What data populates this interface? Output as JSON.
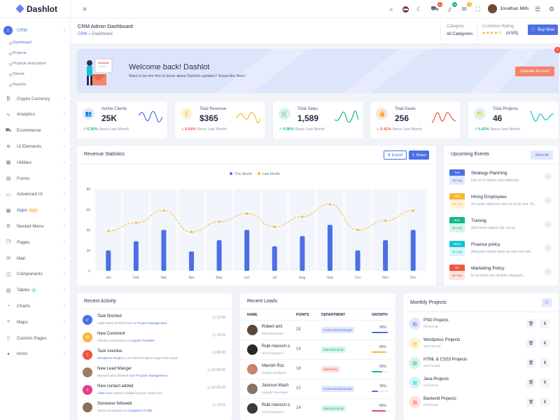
{
  "app": {
    "name": "Dashlot"
  },
  "sidebar": {
    "items": [
      {
        "label": "CRM",
        "icon": "home-icon"
      },
      {
        "label": "Crypto Currency",
        "icon": "bitcoin-icon"
      },
      {
        "label": "Analytics",
        "icon": "pulse-icon"
      },
      {
        "label": "Ecommerce",
        "icon": "cart-icon"
      },
      {
        "label": "Ui Elements",
        "icon": "layers-icon"
      },
      {
        "label": "Utilities",
        "icon": "grid-icon"
      },
      {
        "label": "Forms",
        "icon": "form-icon"
      },
      {
        "label": "Advanced Ui",
        "icon": "monitor-icon"
      },
      {
        "label": "Apps",
        "icon": "apps-icon",
        "badge": "New"
      },
      {
        "label": "Nested Menu",
        "icon": "settings-icon"
      },
      {
        "label": "Pages",
        "icon": "pages-icon"
      },
      {
        "label": "Mail",
        "icon": "mail-icon"
      },
      {
        "label": "Components",
        "icon": "box-icon"
      },
      {
        "label": "Tables",
        "icon": "table-icon",
        "badge": "3"
      },
      {
        "label": "Charts",
        "icon": "chart-icon"
      },
      {
        "label": "Maps",
        "icon": "map-icon"
      },
      {
        "label": "Custom Pages",
        "icon": "file-icon"
      },
      {
        "label": "Icons",
        "icon": "icons-icon"
      }
    ],
    "crm_sub": [
      "Dashboard",
      "Projects",
      "Projects description",
      "Clients",
      "Reports"
    ]
  },
  "topbar": {
    "user": "Jonathan Mills",
    "badges": {
      "cart": "5",
      "notifications": "5",
      "messages": "5"
    }
  },
  "header": {
    "title": "CRM Admin Dashboard",
    "crumb_root": "CRM",
    "crumb_sep": "»",
    "crumb_current": "Dashboard",
    "category_label": "Category",
    "category_value": "All Categories",
    "rating_label": "Customer Rating",
    "rating_value": "(4.5/5)",
    "rating_stars": "★★★★½",
    "buy_now": "Buy Now"
  },
  "welcome": {
    "title": "Welcome back! Dashlot",
    "subtitle": "Want to be the first to know about Dashlot updates? Subscribe Now !",
    "button": "Upgrade Account",
    "close": "×"
  },
  "stats": [
    {
      "label": "Active Clients",
      "value": "25K",
      "change": "0.35%",
      "dir": "up",
      "since": "Since Last Month",
      "color": "#4c6fe6",
      "bg": "#e3e8fc",
      "icon": "users-icon",
      "glyph": "👥"
    },
    {
      "label": "Total Revenue",
      "value": "$365",
      "change": "0.54%",
      "dir": "down",
      "since": "Since Last Month",
      "color": "#f7b731",
      "bg": "#fef3d9",
      "icon": "dollar-icon",
      "glyph": "$"
    },
    {
      "label": "Total Sales",
      "value": "1,589",
      "change": "0.96%",
      "dir": "up",
      "since": "Since Last Month",
      "color": "#12b886",
      "bg": "#d7f5ea",
      "icon": "cart-icon",
      "glyph": "🛒"
    },
    {
      "label": "Total Deals",
      "value": "256",
      "change": "0.42%",
      "dir": "down",
      "since": "Since Last Month",
      "color": "#f0553f",
      "bg": "#fde2de",
      "icon": "thumbs-up-icon",
      "glyph": "👍"
    },
    {
      "label": "Total Projects",
      "value": "46",
      "change": "0.43%",
      "dir": "up",
      "since": "Since Last Month",
      "color": "#13c2d6",
      "bg": "#d6f5f8",
      "icon": "folder-icon",
      "glyph": "📁"
    }
  ],
  "revenue": {
    "title": "Revenue Statistics",
    "export": "Export",
    "share": "Share"
  },
  "chart_data": {
    "type": "bar",
    "categories": [
      "Jan",
      "Feb",
      "Mar",
      "Apr",
      "May",
      "Jun",
      "Jul",
      "Aug",
      "Sep",
      "Oct",
      "Nov",
      "Dec"
    ],
    "series": [
      {
        "name": "This Month",
        "type": "bar",
        "color": "#4c6fe6",
        "values": [
          20,
          29,
          40,
          19,
          30,
          40,
          24,
          34,
          45,
          20,
          30,
          40
        ]
      },
      {
        "name": "Last Month",
        "type": "line",
        "style": "dashed",
        "color": "#f7b731",
        "values": [
          39,
          47,
          59,
          38,
          48,
          56,
          43,
          53,
          65,
          40,
          49,
          59
        ]
      }
    ],
    "ylim": [
      0,
      80
    ],
    "yticks": [
      0,
      20,
      40,
      60,
      80
    ],
    "legend": "top-center",
    "grid": false
  },
  "events": {
    "title": "Upcoming Events",
    "show_all": "Show All",
    "items": [
      {
        "day": "Tue",
        "date": "16 Aug",
        "title": "Strategy Planning",
        "desc": "Duo et et rebum kasd takimata.",
        "color": "#4c6fe6",
        "bg": "#e3e8fc"
      },
      {
        "day": "Thu",
        "date": "18 Aug",
        "title": "Hiring Employees",
        "desc": "Accusam diam est vero no sit sit sea. Te...",
        "color": "#f7b731",
        "bg": "#fef3d9"
      },
      {
        "day": "Mon",
        "date": "22 Aug",
        "title": "Traning",
        "desc": "Stet lorem rebum elitr sea et.",
        "color": "#12b886",
        "bg": "#d7f5ea"
      },
      {
        "day": "Wed",
        "date": "31 Aug",
        "title": "Finance policy",
        "desc": "Aliquyam rebum diam ea vero sea elitr...",
        "color": "#13c2d6",
        "bg": "#d6f5f8"
      },
      {
        "day": "Fri",
        "date": "06 Sep",
        "title": "Marketing Policy",
        "desc": "Et at lorem eos sit dolor aliquyam...",
        "color": "#f0553f",
        "bg": "#fde2de"
      }
    ]
  },
  "activity": {
    "title": "Recent Activity",
    "items": [
      {
        "title": "Task finished",
        "pre": "Adam Berry finished task on",
        "link": "Project Management",
        "time": "12:05",
        "color": "#4c6fe6",
        "icon": "check-icon",
        "glyph": "✓"
      },
      {
        "title": "New Comment",
        "pre": "Victoria commented on",
        "link": "Angular Template",
        "time": "12:01",
        "color": "#f7b731",
        "icon": "comment-icon",
        "glyph": "✉"
      },
      {
        "title": "Task overdue",
        "pre": "",
        "link": "Wordpress Project",
        "post": "is on hold and takes longer than usual.",
        "time": "09:43",
        "color": "#f0553f",
        "icon": "alert-icon",
        "glyph": "!"
      },
      {
        "title": "New Lead Manger",
        "pre": "Manuel Labor finished task",
        "link": "Program management",
        "time": "10-06-22",
        "color": "#a17c60",
        "icon": "avatar-icon",
        "glyph": ""
      },
      {
        "title": "New contact added",
        "pre": "",
        "link": "Adam Ava",
        "post": "contact is added to your contact list.",
        "time": "10-06-22",
        "color": "#e83e8c",
        "icon": "user-plus-icon",
        "glyph": "+"
      },
      {
        "title": "Someone followed",
        "pre": "Genni commented on",
        "link": "Instagram Profile",
        "time": "12:01",
        "color": "#8a6d5a",
        "icon": "avatar-icon",
        "glyph": ""
      }
    ]
  },
  "leads": {
    "title": "Recent Leads",
    "headers": [
      "NAME",
      "POINTS",
      "DEPARTMENT",
      "GROWTH"
    ],
    "rows": [
      {
        "name": "Robert anil",
        "role": "Web Developer",
        "points": "25",
        "dept": "Front-end Developer",
        "growth": "90%",
        "pct": 90,
        "dept_color": "#4c6fe6",
        "dept_bg": "#e3e8fc",
        "bar_color": "#4c6fe6"
      },
      {
        "name": "Rubi mansch o",
        "role": "UI/UX Designer",
        "points": "14",
        "dept": "Manufacturing",
        "growth": "80%",
        "pct": 80,
        "dept_color": "#12b886",
        "dept_bg": "#d7f5ea",
        "bar_color": "#f7b731"
      },
      {
        "name": "Marckh Roz",
        "role": "Graphic Designer",
        "points": "18",
        "dept": "Marketing",
        "growth": "60%",
        "pct": 60,
        "dept_color": "#f0553f",
        "dept_bg": "#fde2de",
        "bar_color": "#12b886"
      },
      {
        "name": "Jackson Mach",
        "role": "Angular Developer",
        "points": "10",
        "dept": "Front-end Developer",
        "growth": "35%",
        "pct": 35,
        "dept_color": "#4c6fe6",
        "dept_bg": "#e3e8fc",
        "bar_color": "#4c6fe6"
      },
      {
        "name": "Rubi mansch o",
        "role": "UI/UX Designer",
        "points": "14",
        "dept": "Manufacturing",
        "growth": "80%",
        "pct": 80,
        "dept_color": "#12b886",
        "dept_bg": "#d7f5ea",
        "bar_color": "#e83e8c"
      }
    ]
  },
  "projects": {
    "title": "Monthly Projects",
    "items": [
      {
        "name": "PSD Projects",
        "type": "Pdf format",
        "color": "#4c6fe6",
        "bg": "#e3e8fc"
      },
      {
        "name": "Wordpress Projects",
        "type": "Word format",
        "color": "#f7b731",
        "bg": "#fef3d9"
      },
      {
        "name": "HTML & CSS3 Projects",
        "type": "Html format",
        "color": "#12b886",
        "bg": "#d7f5ea"
      },
      {
        "name": "Java Projects",
        "type": "Pdf format",
        "color": "#13c2d6",
        "bg": "#d6f5f8"
      },
      {
        "name": "Backend Projects",
        "type": "Pdf format",
        "color": "#f0553f",
        "bg": "#fde2de"
      }
    ]
  }
}
